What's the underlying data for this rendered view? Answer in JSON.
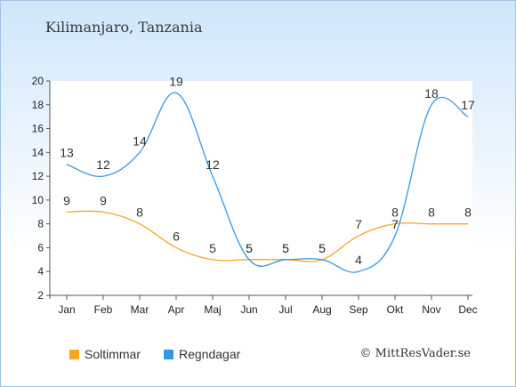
{
  "title": "Kilimanjaro, Tanzania",
  "credit": "© MittResVader.se",
  "colors": {
    "sun": "#f5a623",
    "rain": "#3399e6"
  },
  "chart_data": {
    "type": "line",
    "categories": [
      "Jan",
      "Feb",
      "Mar",
      "Apr",
      "Maj",
      "Jun",
      "Jul",
      "Aug",
      "Sep",
      "Okt",
      "Nov",
      "Dec"
    ],
    "ylim": [
      2,
      20
    ],
    "yticks": [
      2,
      4,
      6,
      8,
      10,
      12,
      14,
      16,
      18,
      20
    ],
    "grid": false,
    "legend_position": "bottom-left",
    "series": [
      {
        "name": "Soltimmar",
        "color": "#f5a623",
        "values": [
          9,
          9,
          8,
          6,
          5,
          5,
          5,
          5,
          7,
          8,
          8,
          8
        ]
      },
      {
        "name": "Regndagar",
        "color": "#3399e6",
        "values": [
          13,
          12,
          14,
          19,
          12,
          5,
          5,
          5,
          4,
          7,
          18,
          17
        ]
      }
    ]
  }
}
